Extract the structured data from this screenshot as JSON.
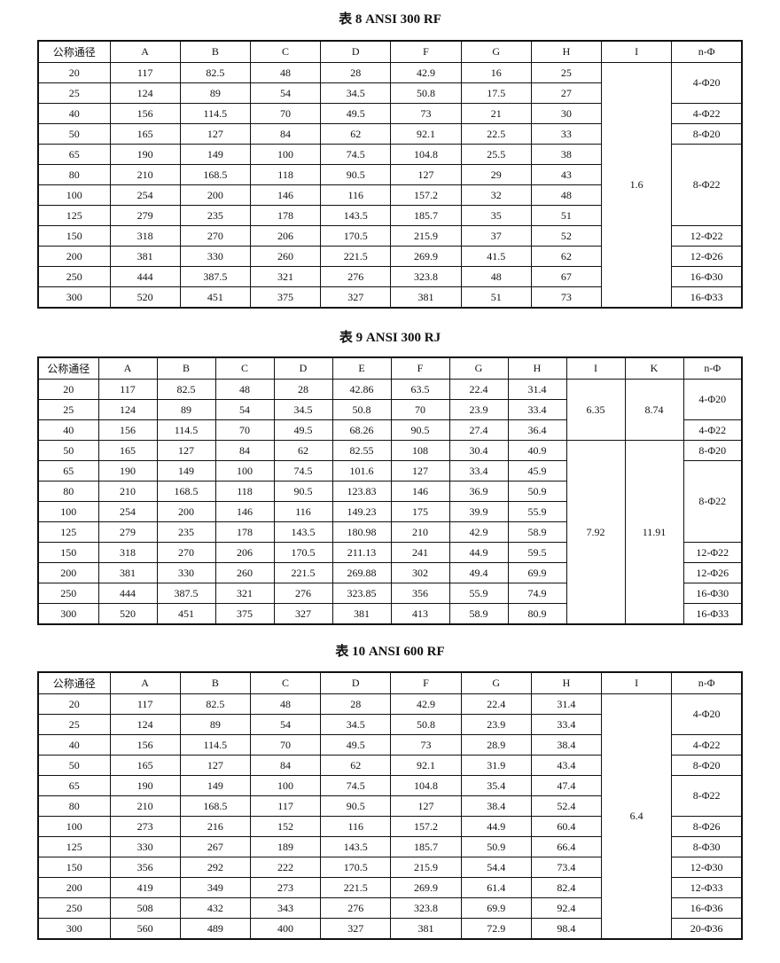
{
  "tables": [
    {
      "title": "表 8  ANSI 300   RF",
      "headers": [
        "公称通径",
        "A",
        "B",
        "C",
        "D",
        "F",
        "G",
        "H",
        "I",
        "n-Φ"
      ],
      "rows": [
        [
          "20",
          "117",
          "82.5",
          "48",
          "28",
          "42.9",
          "16",
          "25"
        ],
        [
          "25",
          "124",
          "89",
          "54",
          "34.5",
          "50.8",
          "17.5",
          "27"
        ],
        [
          "40",
          "156",
          "114.5",
          "70",
          "49.5",
          "73",
          "21",
          "30"
        ],
        [
          "50",
          "165",
          "127",
          "84",
          "62",
          "92.1",
          "22.5",
          "33"
        ],
        [
          "65",
          "190",
          "149",
          "100",
          "74.5",
          "104.8",
          "25.5",
          "38"
        ],
        [
          "80",
          "210",
          "168.5",
          "118",
          "90.5",
          "127",
          "29",
          "43"
        ],
        [
          "100",
          "254",
          "200",
          "146",
          "116",
          "157.2",
          "32",
          "48"
        ],
        [
          "125",
          "279",
          "235",
          "178",
          "143.5",
          "185.7",
          "35",
          "51"
        ],
        [
          "150",
          "318",
          "270",
          "206",
          "170.5",
          "215.9",
          "37",
          "52"
        ],
        [
          "200",
          "381",
          "330",
          "260",
          "221.5",
          "269.9",
          "41.5",
          "62"
        ],
        [
          "250",
          "444",
          "387.5",
          "321",
          "276",
          "323.8",
          "48",
          "67"
        ],
        [
          "300",
          "520",
          "451",
          "375",
          "327",
          "381",
          "51",
          "73"
        ]
      ],
      "merged": [
        {
          "groups": [
            {
              "text": "1.6",
              "span": 12
            }
          ]
        },
        {
          "groups": [
            {
              "text": "4-Φ20",
              "span": 2
            },
            {
              "text": "4-Φ22",
              "span": 1
            },
            {
              "text": "8-Φ20",
              "span": 1
            },
            {
              "text": "8-Φ22",
              "span": 4
            },
            {
              "text": "12-Φ22",
              "span": 1
            },
            {
              "text": "12-Φ26",
              "span": 1
            },
            {
              "text": "16-Φ30",
              "span": 1
            },
            {
              "text": "16-Φ33",
              "span": 1
            }
          ]
        }
      ]
    },
    {
      "title": "表 9  ANSI 300   RJ",
      "headers": [
        "公称通径",
        "A",
        "B",
        "C",
        "D",
        "E",
        "F",
        "G",
        "H",
        "I",
        "K",
        "n-Φ"
      ],
      "rows": [
        [
          "20",
          "117",
          "82.5",
          "48",
          "28",
          "42.86",
          "63.5",
          "22.4",
          "31.4"
        ],
        [
          "25",
          "124",
          "89",
          "54",
          "34.5",
          "50.8",
          "70",
          "23.9",
          "33.4"
        ],
        [
          "40",
          "156",
          "114.5",
          "70",
          "49.5",
          "68.26",
          "90.5",
          "27.4",
          "36.4"
        ],
        [
          "50",
          "165",
          "127",
          "84",
          "62",
          "82.55",
          "108",
          "30.4",
          "40.9"
        ],
        [
          "65",
          "190",
          "149",
          "100",
          "74.5",
          "101.6",
          "127",
          "33.4",
          "45.9"
        ],
        [
          "80",
          "210",
          "168.5",
          "118",
          "90.5",
          "123.83",
          "146",
          "36.9",
          "50.9"
        ],
        [
          "100",
          "254",
          "200",
          "146",
          "116",
          "149.23",
          "175",
          "39.9",
          "55.9"
        ],
        [
          "125",
          "279",
          "235",
          "178",
          "143.5",
          "180.98",
          "210",
          "42.9",
          "58.9"
        ],
        [
          "150",
          "318",
          "270",
          "206",
          "170.5",
          "211.13",
          "241",
          "44.9",
          "59.5"
        ],
        [
          "200",
          "381",
          "330",
          "260",
          "221.5",
          "269.88",
          "302",
          "49.4",
          "69.9"
        ],
        [
          "250",
          "444",
          "387.5",
          "321",
          "276",
          "323.85",
          "356",
          "55.9",
          "74.9"
        ],
        [
          "300",
          "520",
          "451",
          "375",
          "327",
          "381",
          "413",
          "58.9",
          "80.9"
        ]
      ],
      "merged": [
        {
          "groups": [
            {
              "text": "6.35",
              "span": 3
            },
            {
              "text": "7.92",
              "span": 9
            }
          ]
        },
        {
          "groups": [
            {
              "text": "8.74",
              "span": 3
            },
            {
              "text": "11.91",
              "span": 9
            }
          ]
        },
        {
          "groups": [
            {
              "text": "4-Φ20",
              "span": 2
            },
            {
              "text": "4-Φ22",
              "span": 1
            },
            {
              "text": "8-Φ20",
              "span": 1
            },
            {
              "text": "8-Φ22",
              "span": 4
            },
            {
              "text": "12-Φ22",
              "span": 1
            },
            {
              "text": "12-Φ26",
              "span": 1
            },
            {
              "text": "16-Φ30",
              "span": 1
            },
            {
              "text": "16-Φ33",
              "span": 1
            }
          ]
        }
      ]
    },
    {
      "title": "表 10  ANSI 600   RF",
      "headers": [
        "公称通径",
        "A",
        "B",
        "C",
        "D",
        "F",
        "G",
        "H",
        "I",
        "n-Φ"
      ],
      "rows": [
        [
          "20",
          "117",
          "82.5",
          "48",
          "28",
          "42.9",
          "22.4",
          "31.4"
        ],
        [
          "25",
          "124",
          "89",
          "54",
          "34.5",
          "50.8",
          "23.9",
          "33.4"
        ],
        [
          "40",
          "156",
          "114.5",
          "70",
          "49.5",
          "73",
          "28.9",
          "38.4"
        ],
        [
          "50",
          "165",
          "127",
          "84",
          "62",
          "92.1",
          "31.9",
          "43.4"
        ],
        [
          "65",
          "190",
          "149",
          "100",
          "74.5",
          "104.8",
          "35.4",
          "47.4"
        ],
        [
          "80",
          "210",
          "168.5",
          "117",
          "90.5",
          "127",
          "38.4",
          "52.4"
        ],
        [
          "100",
          "273",
          "216",
          "152",
          "116",
          "157.2",
          "44.9",
          "60.4"
        ],
        [
          "125",
          "330",
          "267",
          "189",
          "143.5",
          "185.7",
          "50.9",
          "66.4"
        ],
        [
          "150",
          "356",
          "292",
          "222",
          "170.5",
          "215.9",
          "54.4",
          "73.4"
        ],
        [
          "200",
          "419",
          "349",
          "273",
          "221.5",
          "269.9",
          "61.4",
          "82.4"
        ],
        [
          "250",
          "508",
          "432",
          "343",
          "276",
          "323.8",
          "69.9",
          "92.4"
        ],
        [
          "300",
          "560",
          "489",
          "400",
          "327",
          "381",
          "72.9",
          "98.4"
        ]
      ],
      "merged": [
        {
          "groups": [
            {
              "text": "6.4",
              "span": 12
            }
          ]
        },
        {
          "groups": [
            {
              "text": "4-Φ20",
              "span": 2
            },
            {
              "text": "4-Φ22",
              "span": 1
            },
            {
              "text": "8-Φ20",
              "span": 1
            },
            {
              "text": "8-Φ22",
              "span": 2
            },
            {
              "text": "8-Φ26",
              "span": 1
            },
            {
              "text": "8-Φ30",
              "span": 1
            },
            {
              "text": "12-Φ30",
              "span": 1
            },
            {
              "text": "12-Φ33",
              "span": 1
            },
            {
              "text": "16-Φ36",
              "span": 1
            },
            {
              "text": "20-Φ36",
              "span": 1
            }
          ]
        }
      ]
    }
  ]
}
